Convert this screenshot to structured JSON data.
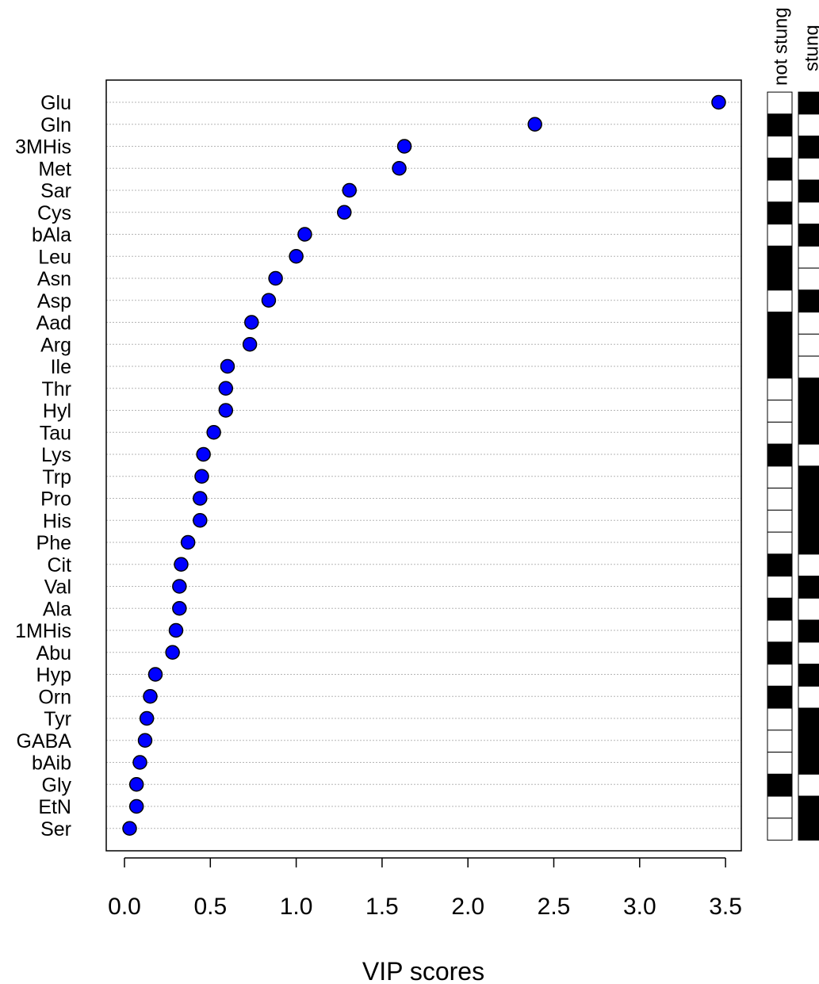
{
  "chart_data": {
    "type": "scatter",
    "title": "",
    "xlabel": "VIP scores",
    "ylabel": "",
    "xlim": [
      -0.1,
      3.6
    ],
    "xticks": [
      "0.0",
      "0.5",
      "1.0",
      "1.5",
      "2.0",
      "2.5",
      "3.0",
      "3.5"
    ],
    "grid": "horizontal dotted",
    "point_color": "#0000ff",
    "categories": [
      "Glu",
      "Gln",
      "3MHis",
      "Met",
      "Sar",
      "Cys",
      "bAla",
      "Leu",
      "Asn",
      "Asp",
      "Aad",
      "Arg",
      "Ile",
      "Thr",
      "Hyl",
      "Tau",
      "Lys",
      "Trp",
      "Pro",
      "His",
      "Phe",
      "Cit",
      "Val",
      "Ala",
      "1MHis",
      "Abu",
      "Hyp",
      "Orn",
      "Tyr",
      "GABA",
      "bAib",
      "Gly",
      "EtN",
      "Ser"
    ],
    "values": [
      3.46,
      2.39,
      1.63,
      1.6,
      1.31,
      1.28,
      1.05,
      1.0,
      0.88,
      0.84,
      0.74,
      0.73,
      0.6,
      0.59,
      0.59,
      0.52,
      0.46,
      0.45,
      0.44,
      0.44,
      0.37,
      0.33,
      0.32,
      0.32,
      0.3,
      0.28,
      0.18,
      0.15,
      0.13,
      0.12,
      0.09,
      0.07,
      0.07,
      0.03
    ],
    "heatmap": {
      "columns": [
        "not stung",
        "stung"
      ],
      "cells": [
        [
          0,
          1
        ],
        [
          1,
          0
        ],
        [
          0,
          1
        ],
        [
          1,
          0
        ],
        [
          0,
          1
        ],
        [
          1,
          0
        ],
        [
          0,
          1
        ],
        [
          1,
          0
        ],
        [
          1,
          0
        ],
        [
          0,
          1
        ],
        [
          1,
          0
        ],
        [
          1,
          0
        ],
        [
          1,
          0
        ],
        [
          0,
          1
        ],
        [
          0,
          1
        ],
        [
          0,
          1
        ],
        [
          1,
          0
        ],
        [
          0,
          1
        ],
        [
          0,
          1
        ],
        [
          0,
          1
        ],
        [
          0,
          1
        ],
        [
          1,
          0
        ],
        [
          0,
          1
        ],
        [
          1,
          0
        ],
        [
          0,
          1
        ],
        [
          1,
          0
        ],
        [
          0,
          1
        ],
        [
          1,
          0
        ],
        [
          0,
          1
        ],
        [
          0,
          1
        ],
        [
          0,
          1
        ],
        [
          1,
          0
        ],
        [
          0,
          1
        ],
        [
          0,
          1
        ]
      ],
      "colors": {
        "high": "#000000",
        "low": "#ffffff"
      }
    }
  }
}
